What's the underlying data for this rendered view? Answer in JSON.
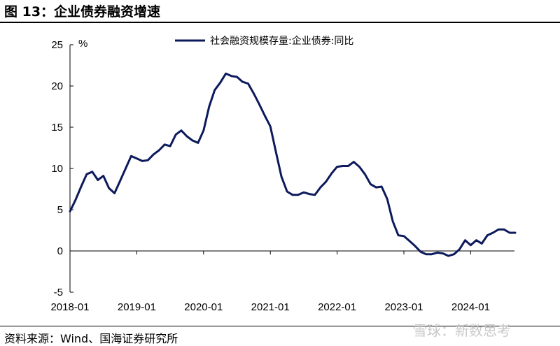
{
  "header": {
    "title": "图 13：企业债券融资增速"
  },
  "footer": {
    "source": "资料来源：Wind、国海证券研究所",
    "watermark": "雪球：新数思考"
  },
  "colors": {
    "line": "#0c1a5c",
    "axis": "#000000"
  },
  "chart_data": {
    "type": "line",
    "title": "",
    "xlabel": "",
    "ylabel": "%",
    "ylim": [
      -5,
      25
    ],
    "y_ticks": [
      -5,
      0,
      5,
      10,
      15,
      20,
      25
    ],
    "x_ticks": [
      "2018-01",
      "2019-01",
      "2020-01",
      "2021-01",
      "2022-01",
      "2023-01",
      "2024-01"
    ],
    "grid": false,
    "legend_position": "top",
    "series": [
      {
        "name": "社会融资规模存量:企业债券:同比",
        "x": [
          "2018-01",
          "2018-02",
          "2018-03",
          "2018-04",
          "2018-05",
          "2018-06",
          "2018-07",
          "2018-08",
          "2018-09",
          "2018-10",
          "2018-11",
          "2018-12",
          "2019-01",
          "2019-02",
          "2019-03",
          "2019-04",
          "2019-05",
          "2019-06",
          "2019-07",
          "2019-08",
          "2019-09",
          "2019-10",
          "2019-11",
          "2019-12",
          "2020-01",
          "2020-02",
          "2020-03",
          "2020-04",
          "2020-05",
          "2020-06",
          "2020-07",
          "2020-08",
          "2020-09",
          "2020-10",
          "2020-11",
          "2020-12",
          "2021-01",
          "2021-02",
          "2021-03",
          "2021-04",
          "2021-05",
          "2021-06",
          "2021-07",
          "2021-08",
          "2021-09",
          "2021-10",
          "2021-11",
          "2021-12",
          "2022-01",
          "2022-02",
          "2022-03",
          "2022-04",
          "2022-05",
          "2022-06",
          "2022-07",
          "2022-08",
          "2022-09",
          "2022-10",
          "2022-11",
          "2022-12",
          "2023-01",
          "2023-02",
          "2023-03",
          "2023-04",
          "2023-05",
          "2023-06",
          "2023-07",
          "2023-08",
          "2023-09",
          "2023-10",
          "2023-11",
          "2023-12",
          "2024-01",
          "2024-02",
          "2024-03",
          "2024-04",
          "2024-05",
          "2024-06",
          "2024-07",
          "2024-08",
          "2024-09"
        ],
        "values": [
          4.8,
          6.2,
          7.8,
          9.3,
          9.6,
          8.6,
          9.1,
          7.6,
          7.0,
          8.5,
          10.0,
          11.5,
          11.2,
          10.9,
          11.0,
          11.7,
          12.2,
          12.9,
          12.7,
          14.1,
          14.6,
          13.9,
          13.4,
          13.1,
          14.6,
          17.5,
          19.5,
          20.4,
          21.5,
          21.2,
          21.1,
          20.5,
          20.3,
          19.1,
          17.8,
          16.4,
          15.1,
          12.0,
          9.0,
          7.2,
          6.8,
          6.8,
          7.1,
          6.9,
          6.8,
          7.7,
          8.4,
          9.4,
          10.2,
          10.3,
          10.3,
          10.8,
          10.2,
          9.3,
          8.1,
          7.7,
          7.8,
          6.3,
          3.6,
          1.9,
          1.8,
          1.2,
          0.6,
          -0.1,
          -0.4,
          -0.4,
          -0.2,
          -0.3,
          -0.6,
          -0.4,
          0.2,
          1.3,
          0.7,
          1.3,
          0.9,
          1.9,
          2.2,
          2.6,
          2.6,
          2.2,
          2.2
        ]
      }
    ]
  }
}
